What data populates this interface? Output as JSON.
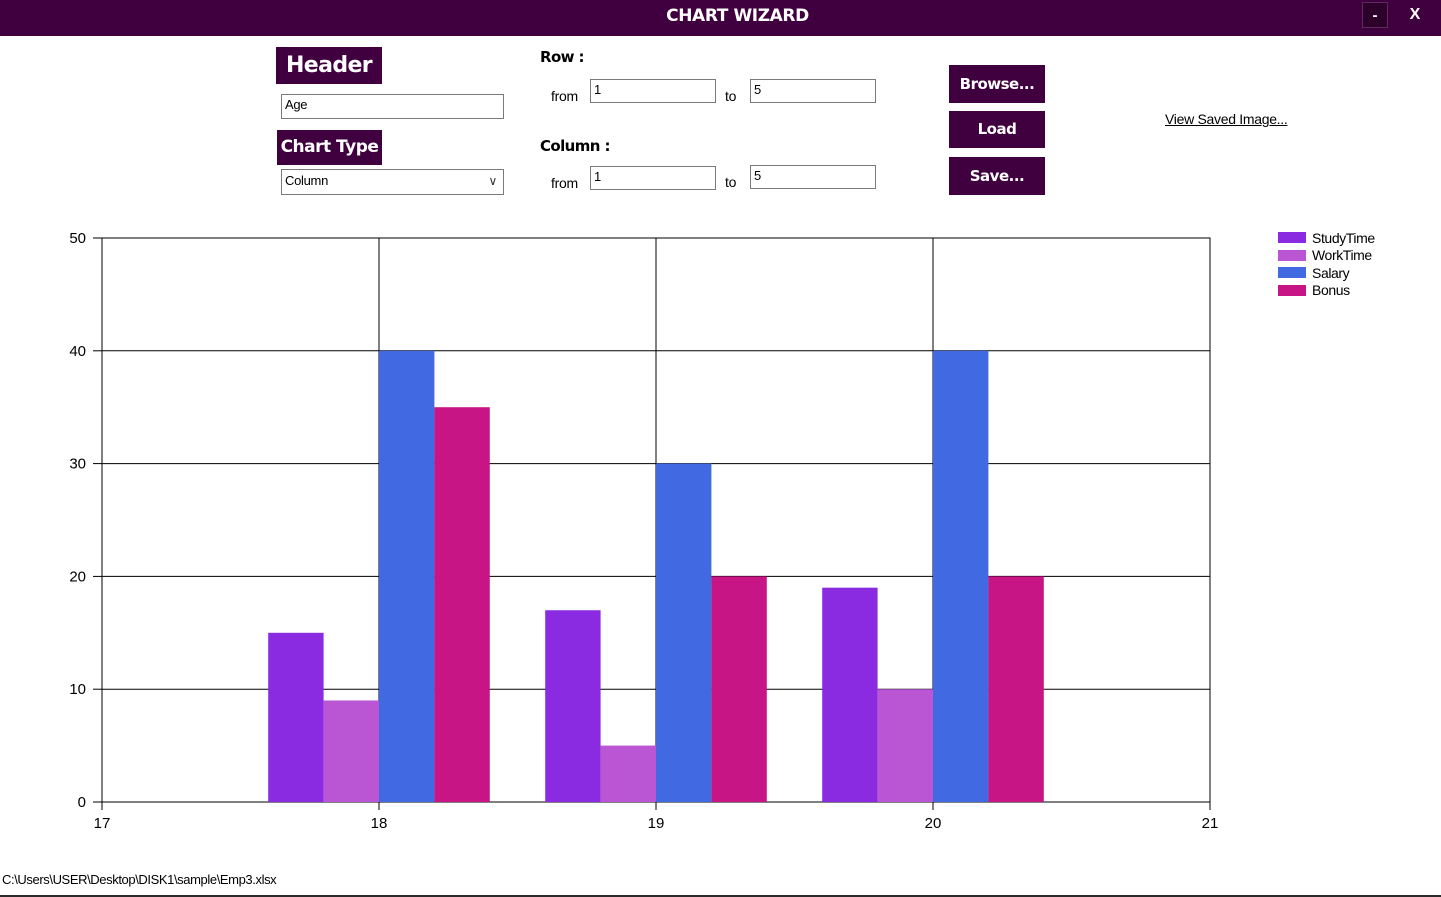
{
  "window": {
    "title": "CHART WIZARD",
    "minimize_label": "-",
    "close_label": "X"
  },
  "header_section": {
    "label": "Header",
    "value": "Age"
  },
  "chart_type_section": {
    "label": "Chart Type",
    "selected": "Column"
  },
  "row_section": {
    "label": "Row :",
    "from_label": "from",
    "from_value": "1",
    "to_label": "to",
    "to_value": "5"
  },
  "column_section": {
    "label": "Column :",
    "from_label": "from",
    "from_value": "1",
    "to_label": "to",
    "to_value": "5"
  },
  "buttons": {
    "browse": "Browse...",
    "load": "Load",
    "save": "Save..."
  },
  "view_saved_link": "View Saved Image...",
  "status_path": "C:\\Users\\USER\\Desktop\\DISK1\\sample\\Emp3.xlsx",
  "chart_data": {
    "type": "bar",
    "x": [
      18,
      19,
      20
    ],
    "xlim": [
      17,
      21
    ],
    "xticks": [
      17,
      18,
      19,
      20,
      21
    ],
    "ylim": [
      0,
      50
    ],
    "yticks": [
      0,
      10,
      20,
      30,
      40,
      50
    ],
    "grid": true,
    "legend": "top-right",
    "series": [
      {
        "name": "StudyTime",
        "values": [
          15,
          17,
          19
        ],
        "color": "#8a2be2"
      },
      {
        "name": "WorkTime",
        "values": [
          9,
          5,
          10
        ],
        "color": "#ba55d3"
      },
      {
        "name": "Salary",
        "values": [
          40,
          30,
          40
        ],
        "color": "#4169e1"
      },
      {
        "name": "Bonus",
        "values": [
          35,
          20,
          20
        ],
        "color": "#c71585"
      }
    ]
  },
  "colors": {
    "accent": "#40003f"
  }
}
